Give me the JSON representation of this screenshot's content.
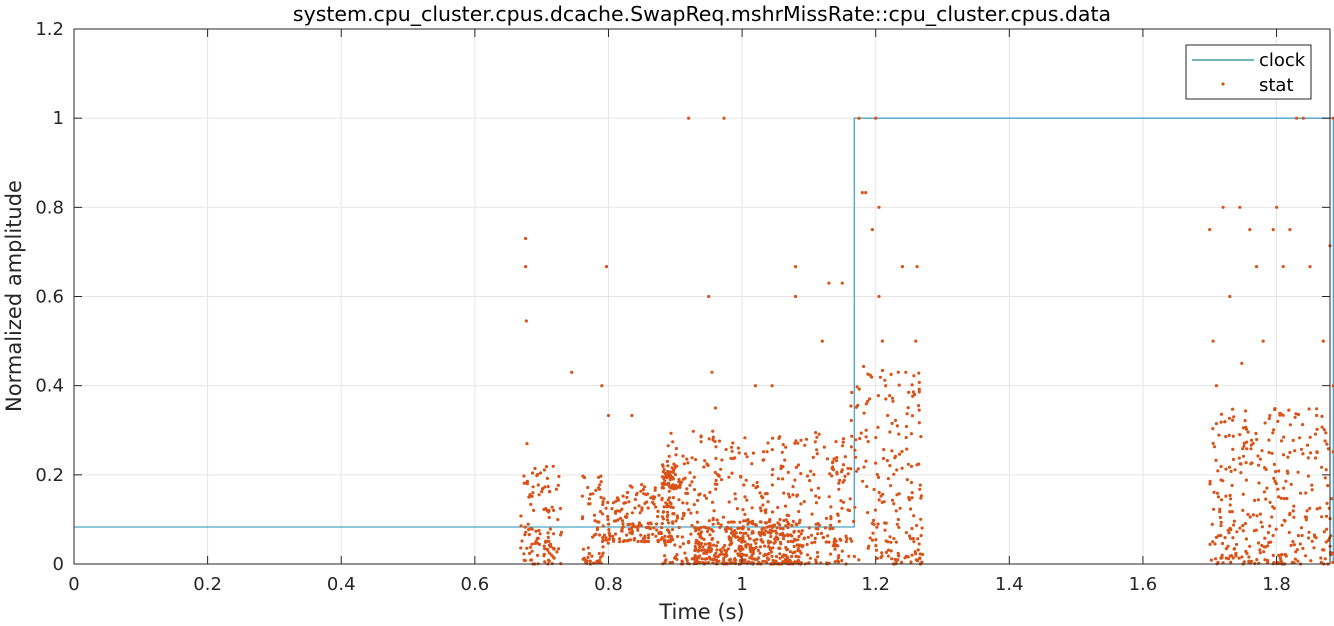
{
  "chart_data": {
    "type": "line",
    "title": "system.cpu_cluster.cpus.dcache.SwapReq.mshrMissRate::cpu_cluster.cpus.data",
    "xlabel": "Time (s)",
    "ylabel": "Normalized amplitude",
    "xlim": [
      0,
      1.88
    ],
    "ylim": [
      0,
      1.2
    ],
    "xticks": [
      "0",
      "0.2",
      "0.4",
      "0.6",
      "0.8",
      "1",
      "1.2",
      "1.4",
      "1.6",
      "1.8"
    ],
    "yticks": [
      "0",
      "0.2",
      "0.4",
      "0.6",
      "0.8",
      "1",
      "1.2"
    ],
    "grid": true,
    "legend_position": "top-right",
    "colors": {
      "clock": "#4aa3c8",
      "stat": "#d95319",
      "grid": "#e6e6e6",
      "axis": "#262626"
    },
    "series": [
      {
        "name": "clock",
        "kind": "line",
        "x": [
          0,
          1.168,
          1.168,
          1.885,
          1.885
        ],
        "y": [
          0.083,
          0.083,
          1.0,
          1.0,
          0
        ]
      },
      {
        "name": "stat",
        "kind": "scatter",
        "x": [
          0.676,
          0.676,
          0.677,
          0.678,
          0.745,
          0.79,
          0.797,
          0.835,
          0.8,
          0.92,
          0.973,
          0.95,
          0.955,
          0.96,
          1.02,
          1.045,
          1.08,
          1.08,
          1.12,
          1.13,
          1.15,
          1.175,
          1.18,
          1.185,
          1.2,
          1.195,
          1.205,
          1.24,
          1.245,
          1.26,
          1.262,
          1.205,
          1.21,
          1.215,
          1.218,
          1.7,
          1.705,
          1.71,
          1.72,
          1.73,
          1.745,
          1.76,
          1.77,
          1.78,
          1.795,
          1.8,
          1.81,
          1.82,
          1.83,
          1.84,
          1.85,
          1.86,
          1.87,
          1.88,
          1.885,
          1.885,
          1.748,
          1.79,
          1.82
        ],
        "y": [
          0.73,
          0.667,
          0.545,
          0.27,
          0.43,
          0.4,
          0.667,
          0.333,
          0.333,
          1.0,
          1.0,
          0.6,
          0.43,
          0.35,
          0.4,
          0.4,
          0.667,
          0.6,
          0.5,
          0.63,
          0.63,
          1.0,
          0.833,
          0.833,
          1.0,
          0.75,
          0.8,
          0.667,
          0.43,
          0.5,
          0.667,
          0.6,
          0.5,
          0.4,
          0.333,
          0.75,
          0.5,
          0.4,
          0.8,
          0.6,
          0.8,
          0.75,
          0.667,
          0.5,
          0.75,
          0.8,
          0.667,
          0.75,
          1.0,
          1.0,
          0.667,
          0.333,
          0.5,
          0.714,
          0.4,
          1.0,
          0.45,
          0.333,
          0.25
        ],
        "dense_clusters": [
          {
            "x_range": [
              0.668,
              0.73
            ],
            "y_range": [
              0,
              0.22
            ]
          },
          {
            "x_range": [
              0.76,
              0.8
            ],
            "y_range": [
              0,
              0.2
            ]
          },
          {
            "x_range": [
              0.8,
              0.9
            ],
            "y_range": [
              0.05,
              0.18
            ]
          },
          {
            "x_range": [
              0.88,
              0.91
            ],
            "y_range": [
              0.17,
              0.23
            ]
          },
          {
            "x_range": [
              0.88,
              1.16
            ],
            "y_range": [
              0,
              0.3
            ]
          },
          {
            "x_range": [
              0.93,
              0.99
            ],
            "y_range": [
              0,
              0.1
            ]
          },
          {
            "x_range": [
              0.99,
              1.09
            ],
            "y_range": [
              0,
              0.1
            ]
          },
          {
            "x_range": [
              1.16,
              1.27
            ],
            "y_range": [
              0,
              0.45
            ]
          },
          {
            "x_range": [
              1.7,
              1.885
            ],
            "y_range": [
              0,
              0.35
            ]
          }
        ]
      }
    ]
  }
}
